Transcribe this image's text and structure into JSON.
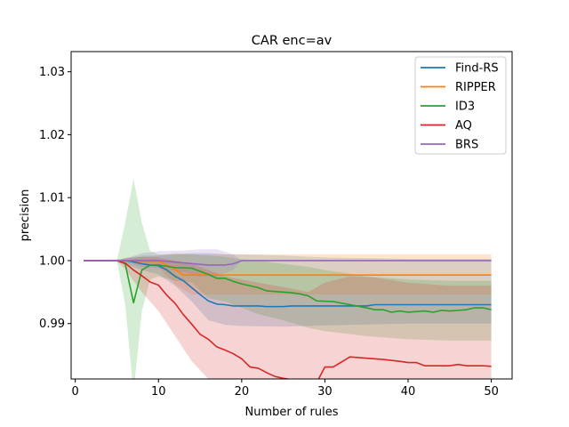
{
  "chart_data": {
    "type": "line",
    "title": "CAR enc=av",
    "xlabel": "Number of rules",
    "ylabel": "precision",
    "xlim": [
      -0.5,
      52.5
    ],
    "ylim": [
      0.9812,
      1.0332
    ],
    "xticks": [
      0,
      10,
      20,
      30,
      40,
      50
    ],
    "yticks": [
      0.99,
      1.0,
      1.01,
      1.02,
      1.03
    ],
    "ytick_labels": [
      "0.99",
      "1.00",
      "1.01",
      "1.02",
      "1.03"
    ],
    "grid": false,
    "legend_position": "top-right",
    "series": [
      {
        "name": "Find-RS",
        "color": "#1f77b4",
        "points": [
          [
            1,
            1.0
          ],
          [
            5,
            1.0
          ],
          [
            6,
            1.0
          ],
          [
            7,
            0.9998
          ],
          [
            8,
            0.9995
          ],
          [
            9,
            0.9993
          ],
          [
            10,
            0.9992
          ],
          [
            11,
            0.9985
          ],
          [
            12,
            0.9975
          ],
          [
            13,
            0.9968
          ],
          [
            14,
            0.9957
          ],
          [
            15,
            0.9946
          ],
          [
            16,
            0.9936
          ],
          [
            17,
            0.9931
          ],
          [
            18,
            0.993
          ],
          [
            19,
            0.9928
          ],
          [
            20,
            0.9928
          ],
          [
            22,
            0.9928
          ],
          [
            23,
            0.9927
          ],
          [
            25,
            0.9927
          ],
          [
            26,
            0.9928
          ],
          [
            28,
            0.9928
          ],
          [
            35,
            0.9928
          ],
          [
            36,
            0.993
          ],
          [
            50,
            0.993
          ]
        ],
        "band": [
          [
            1,
            1.0,
            1.0
          ],
          [
            5,
            1.0,
            1.0
          ],
          [
            6,
            1.0004,
            0.9994
          ],
          [
            7,
            1.0006,
            0.999
          ],
          [
            8,
            1.0008,
            0.9985
          ],
          [
            10,
            1.0008,
            0.9978
          ],
          [
            12,
            1.001,
            0.996
          ],
          [
            14,
            1.0012,
            0.9935
          ],
          [
            16,
            1.0012,
            0.9905
          ],
          [
            18,
            1.001,
            0.9898
          ],
          [
            20,
            1.001,
            0.9896
          ],
          [
            25,
            1.0008,
            0.9895
          ],
          [
            30,
            1.0005,
            0.9897
          ],
          [
            40,
            1.0003,
            0.99
          ],
          [
            50,
            1.0003,
            0.99
          ]
        ]
      },
      {
        "name": "RIPPER",
        "color": "#ff7f0e",
        "points": [
          [
            1,
            1.0
          ],
          [
            6,
            1.0
          ],
          [
            7,
            1.0
          ],
          [
            8,
            0.9999
          ],
          [
            10,
            0.9999
          ],
          [
            11,
            0.9993
          ],
          [
            12,
            0.9986
          ],
          [
            13,
            0.9977
          ],
          [
            14,
            0.9977
          ],
          [
            50,
            0.9977
          ]
        ],
        "band": [
          [
            1,
            1.0,
            1.0
          ],
          [
            6,
            1.0,
            1.0
          ],
          [
            8,
            1.0006,
            0.9993
          ],
          [
            10,
            1.0008,
            0.999
          ],
          [
            12,
            1.0012,
            0.9962
          ],
          [
            14,
            1.001,
            0.9946
          ],
          [
            20,
            1.001,
            0.9946
          ],
          [
            50,
            1.001,
            0.9946
          ]
        ]
      },
      {
        "name": "ID3",
        "color": "#2ca02c",
        "points": [
          [
            1,
            1.0
          ],
          [
            5,
            1.0
          ],
          [
            6,
            0.9995
          ],
          [
            7,
            0.9933
          ],
          [
            8,
            0.9985
          ],
          [
            9,
            0.9993
          ],
          [
            10,
            0.9993
          ],
          [
            11,
            0.9991
          ],
          [
            12,
            0.9989
          ],
          [
            14,
            0.9988
          ],
          [
            16,
            0.9978
          ],
          [
            17,
            0.9972
          ],
          [
            18,
            0.9972
          ],
          [
            19,
            0.9967
          ],
          [
            20,
            0.9963
          ],
          [
            22,
            0.9957
          ],
          [
            23,
            0.9952
          ],
          [
            26,
            0.9949
          ],
          [
            27,
            0.9947
          ],
          [
            28,
            0.9944
          ],
          [
            29,
            0.9936
          ],
          [
            31,
            0.9935
          ],
          [
            33,
            0.993
          ],
          [
            35,
            0.9925
          ],
          [
            36,
            0.9922
          ],
          [
            37,
            0.9922
          ],
          [
            38,
            0.9918
          ],
          [
            39,
            0.992
          ],
          [
            40,
            0.9918
          ],
          [
            42,
            0.992
          ],
          [
            43,
            0.9918
          ],
          [
            44,
            0.9921
          ],
          [
            45,
            0.992
          ],
          [
            46,
            0.9921
          ],
          [
            47,
            0.9922
          ],
          [
            48,
            0.9925
          ],
          [
            49,
            0.9925
          ],
          [
            50,
            0.9922
          ]
        ],
        "band": [
          [
            1,
            1.0,
            1.0
          ],
          [
            5,
            1.0,
            1.0
          ],
          [
            6,
            1.006,
            0.993
          ],
          [
            7,
            1.013,
            0.979
          ],
          [
            8,
            1.006,
            0.992
          ],
          [
            9,
            1.0015,
            0.997
          ],
          [
            10,
            1.001,
            0.9975
          ],
          [
            12,
            1.001,
            0.9968
          ],
          [
            14,
            1.001,
            0.9965
          ],
          [
            16,
            1.0008,
            0.994
          ],
          [
            18,
            1.0006,
            0.9935
          ],
          [
            20,
            1.0002,
            0.9925
          ],
          [
            22,
            1.0,
            0.9915
          ],
          [
            25,
            0.9995,
            0.9905
          ],
          [
            28,
            0.999,
            0.9893
          ],
          [
            30,
            0.9985,
            0.9888
          ],
          [
            35,
            0.9975,
            0.988
          ],
          [
            40,
            0.997,
            0.9875
          ],
          [
            45,
            0.9968,
            0.9873
          ],
          [
            50,
            0.9968,
            0.9873
          ]
        ]
      },
      {
        "name": "AQ",
        "color": "#d62728",
        "points": [
          [
            1,
            1.0
          ],
          [
            5,
            1.0
          ],
          [
            6,
            0.9996
          ],
          [
            7,
            0.9985
          ],
          [
            8,
            0.9976
          ],
          [
            9,
            0.9966
          ],
          [
            10,
            0.9961
          ],
          [
            11,
            0.9945
          ],
          [
            12,
            0.9932
          ],
          [
            13,
            0.9914
          ],
          [
            14,
            0.9899
          ],
          [
            15,
            0.9883
          ],
          [
            16,
            0.9875
          ],
          [
            17,
            0.9863
          ],
          [
            18,
            0.9858
          ],
          [
            19,
            0.9852
          ],
          [
            20,
            0.9844
          ],
          [
            21,
            0.9831
          ],
          [
            22,
            0.9829
          ],
          [
            23,
            0.9822
          ],
          [
            24,
            0.9816
          ],
          [
            25,
            0.9813
          ],
          [
            26,
            0.9811
          ],
          [
            27,
            0.9809
          ],
          [
            28,
            0.9808
          ],
          [
            29,
            0.9806
          ],
          [
            30,
            0.9831
          ],
          [
            31,
            0.9831
          ],
          [
            32,
            0.9839
          ],
          [
            33,
            0.9847
          ],
          [
            35,
            0.9845
          ],
          [
            37,
            0.9843
          ],
          [
            39,
            0.984
          ],
          [
            40,
            0.9838
          ],
          [
            41,
            0.9838
          ],
          [
            42,
            0.9833
          ],
          [
            44,
            0.9833
          ],
          [
            45,
            0.9833
          ],
          [
            46,
            0.9835
          ],
          [
            47,
            0.9833
          ],
          [
            49,
            0.9833
          ],
          [
            50,
            0.9832
          ]
        ],
        "band": [
          [
            1,
            1.0,
            1.0
          ],
          [
            5,
            1.0,
            1.0
          ],
          [
            6,
            1.0004,
            0.9986
          ],
          [
            8,
            1.0006,
            0.995
          ],
          [
            10,
            1.0005,
            0.992
          ],
          [
            12,
            1.0,
            0.988
          ],
          [
            14,
            0.9995,
            0.984
          ],
          [
            16,
            0.9985,
            0.9812
          ],
          [
            18,
            0.9975,
            0.9795
          ],
          [
            20,
            0.997,
            0.978
          ],
          [
            22,
            0.9965,
            0.977
          ],
          [
            25,
            0.9958,
            0.976
          ],
          [
            28,
            0.995,
            0.9755
          ],
          [
            30,
            0.9965,
            0.977
          ],
          [
            33,
            0.9975,
            0.978
          ],
          [
            36,
            0.9973,
            0.9778
          ],
          [
            40,
            0.9965,
            0.9772
          ],
          [
            45,
            0.996,
            0.977
          ],
          [
            50,
            0.996,
            0.977
          ]
        ]
      },
      {
        "name": "BRS",
        "color": "#9467bd",
        "points": [
          [
            1,
            1.0
          ],
          [
            9,
            1.0
          ],
          [
            10,
            1.0
          ],
          [
            15,
            0.9994
          ],
          [
            16,
            0.9993
          ],
          [
            17,
            0.9993
          ],
          [
            18,
            0.9993
          ],
          [
            19,
            0.9995
          ],
          [
            20,
            1.0
          ],
          [
            50,
            1.0
          ]
        ],
        "band": [
          [
            1,
            1.0,
            1.0
          ],
          [
            6,
            1.0003,
            0.9998
          ],
          [
            8,
            1.0012,
            0.999
          ],
          [
            10,
            1.0015,
            0.9988
          ],
          [
            13,
            1.0016,
            0.9982
          ],
          [
            15,
            1.0018,
            0.9975
          ],
          [
            17,
            1.0018,
            0.9975
          ],
          [
            19,
            1.001,
            0.9985
          ],
          [
            20,
            1.0,
            1.0
          ],
          [
            50,
            1.0,
            1.0
          ]
        ]
      }
    ]
  }
}
